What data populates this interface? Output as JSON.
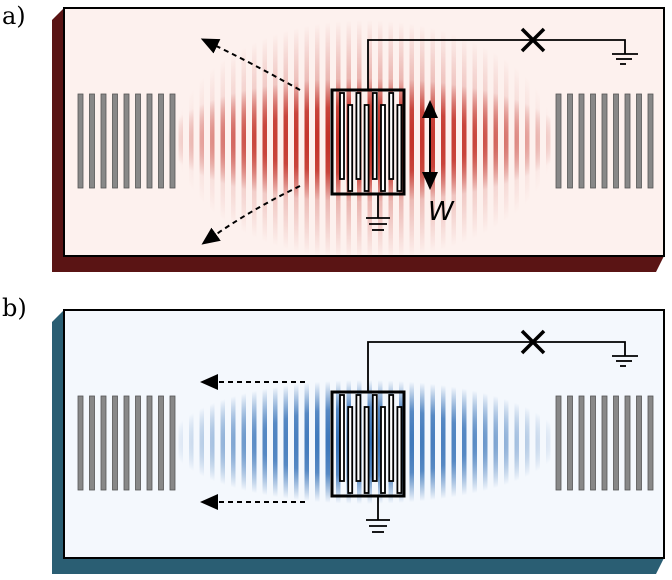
{
  "panels": [
    {
      "label": "a)",
      "width_label": "W"
    },
    {
      "label": "b)"
    }
  ]
}
